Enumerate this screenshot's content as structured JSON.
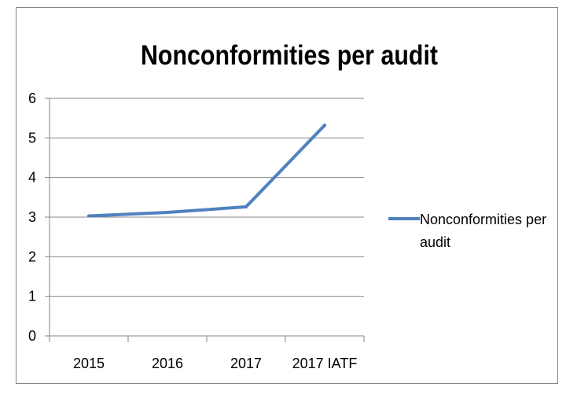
{
  "chart_data": {
    "type": "line",
    "title": "Nonconformities per audit",
    "xlabel": "",
    "ylabel": "",
    "categories": [
      "2015",
      "2016",
      "2017",
      "2017 IATF"
    ],
    "series": [
      {
        "name": "Nonconformities per audit",
        "legend_lines": [
          "Nonconformities per",
          "audit"
        ],
        "values": [
          3.03,
          3.12,
          3.26,
          5.32
        ],
        "color": "#4f81bd"
      }
    ],
    "ylim": [
      0,
      6
    ],
    "yticks": [
      "0",
      "1",
      "2",
      "3",
      "4",
      "5",
      "6"
    ],
    "grid": true,
    "legend_position": "right"
  }
}
